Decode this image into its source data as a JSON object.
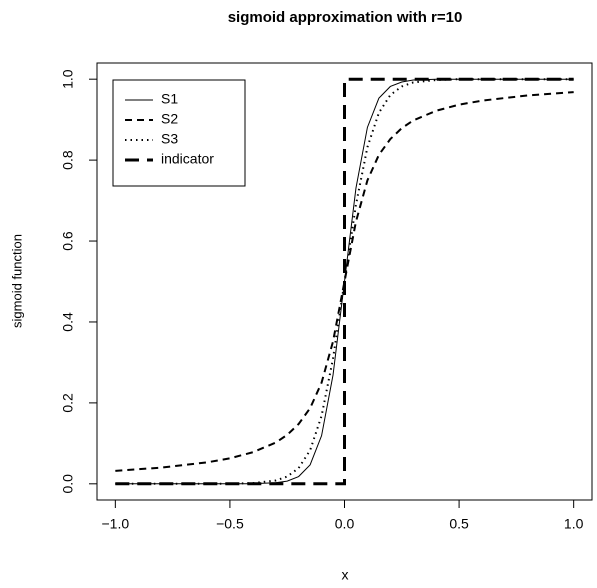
{
  "chart_data": {
    "type": "line",
    "title": "sigmoid approximation with r=10",
    "x_label": "x",
    "y_label": "sigmoid function",
    "x": [
      -1,
      -0.8,
      -0.6,
      -0.5,
      -0.4,
      -0.3,
      -0.25,
      -0.2,
      -0.15,
      -0.1,
      -0.05,
      0,
      0.05,
      0.1,
      0.15,
      0.2,
      0.25,
      0.3,
      0.4,
      0.5,
      0.6,
      0.8,
      1
    ],
    "series": [
      {
        "name": "S1",
        "color": "#000000",
        "line_style": "solid",
        "line_width": 1,
        "values": [
          0,
          0,
          0,
          0,
          0.0003,
          0.0025,
          0.0067,
          0.018,
          0.047,
          0.119,
          0.269,
          0.5,
          0.731,
          0.881,
          0.953,
          0.982,
          0.993,
          0.998,
          1,
          1,
          1,
          1,
          1
        ]
      },
      {
        "name": "S2",
        "color": "#000000",
        "line_style": "dashed",
        "line_width": 2,
        "values": [
          0.032,
          0.04,
          0.053,
          0.063,
          0.078,
          0.102,
          0.121,
          0.148,
          0.187,
          0.25,
          0.352,
          0.5,
          0.648,
          0.75,
          0.813,
          0.852,
          0.879,
          0.898,
          0.922,
          0.937,
          0.947,
          0.96,
          0.968
        ]
      },
      {
        "name": "S3",
        "color": "#000000",
        "line_style": "dotted",
        "line_width": 2,
        "values": [
          0,
          0,
          0.0001,
          0.0003,
          0.0017,
          0.0082,
          0.018,
          0.039,
          0.083,
          0.168,
          0.31,
          0.5,
          0.69,
          0.832,
          0.917,
          0.961,
          0.982,
          0.992,
          0.998,
          1,
          1,
          1,
          1
        ]
      },
      {
        "name": "indicator",
        "color": "#000000",
        "line_style": "longdash",
        "line_width": 3,
        "x": [
          -1,
          0,
          0,
          1
        ],
        "values": [
          0,
          0,
          1,
          1
        ]
      }
    ],
    "xlim": [
      -1.08,
      1.08
    ],
    "ylim": [
      -0.04,
      1.04
    ],
    "xticks": [
      {
        "value": -1,
        "label": "−1.0"
      },
      {
        "value": -0.5,
        "label": "−0.5"
      },
      {
        "value": 0,
        "label": "0.0"
      },
      {
        "value": 0.5,
        "label": "0.5"
      },
      {
        "value": 1,
        "label": "1.0"
      }
    ],
    "yticks": [
      {
        "value": 0,
        "label": "0.0"
      },
      {
        "value": 0.2,
        "label": "0.2"
      },
      {
        "value": 0.4,
        "label": "0.4"
      },
      {
        "value": 0.6,
        "label": "0.6"
      },
      {
        "value": 0.8,
        "label": "0.8"
      },
      {
        "value": 1,
        "label": "1.0"
      }
    ],
    "legend": "topleft",
    "grid": false
  }
}
